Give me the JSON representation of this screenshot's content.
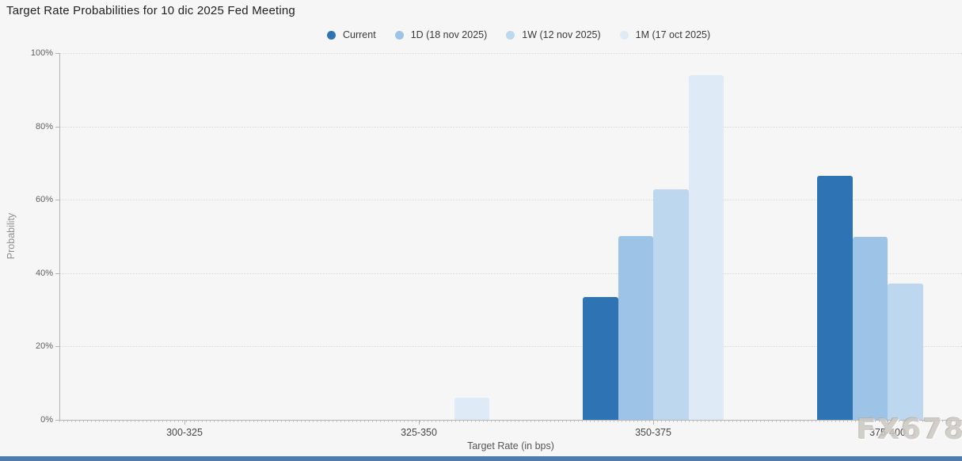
{
  "page": {
    "watermark": "FX678"
  },
  "chart_data": {
    "type": "bar",
    "title": "Target Rate Probabilities for 10 dic 2025 Fed Meeting",
    "xlabel": "Target Rate (in bps)",
    "ylabel": "Probability",
    "ylim": [
      0,
      100
    ],
    "yticks": [
      0,
      20,
      40,
      60,
      80,
      100
    ],
    "ytick_suffix": "%",
    "grid": "dotted-horizontal",
    "legend_position": "top",
    "categories": [
      "300-325",
      "325-350",
      "350-375",
      "375-400"
    ],
    "series": [
      {
        "name": "Current",
        "color": "#2E74B5",
        "values": [
          0,
          0,
          33.5,
          66.5
        ]
      },
      {
        "name": "1D (18 nov 2025)",
        "color": "#9DC3E6",
        "values": [
          0,
          0,
          50.2,
          49.8
        ]
      },
      {
        "name": "1W (12 nov 2025)",
        "color": "#BDD7EE",
        "values": [
          0,
          0,
          62.9,
          37.1
        ]
      },
      {
        "name": "1M (17 oct 2025)",
        "color": "#DEEAF6",
        "values": [
          0,
          6.1,
          93.9,
          0
        ]
      }
    ]
  }
}
